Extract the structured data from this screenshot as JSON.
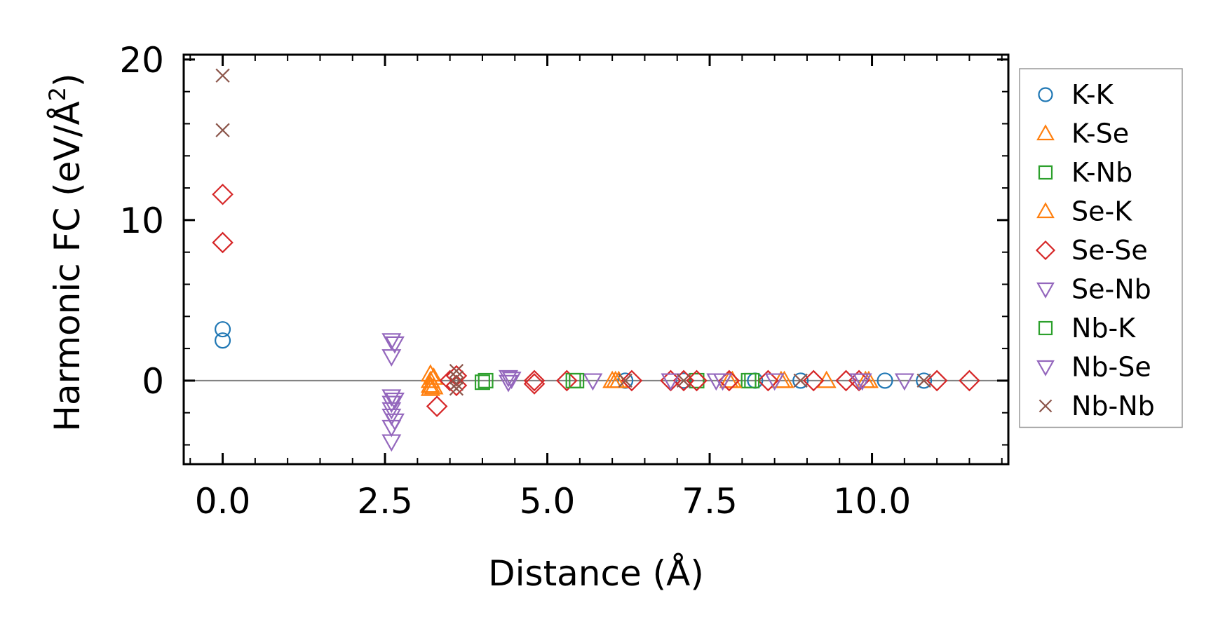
{
  "chart_data": {
    "type": "scatter",
    "title": "",
    "xlabel": "Distance (Å)",
    "ylabel_main": "Harmonic FC (eV/Å",
    "ylabel_sup": "2",
    "ylabel_close": ")",
    "xlim": [
      -0.6,
      12.1
    ],
    "ylim": [
      -5.2,
      20.3
    ],
    "xticks": [
      0.0,
      2.5,
      5.0,
      7.5,
      10.0
    ],
    "xtick_labels": [
      "0.0",
      "2.5",
      "5.0",
      "7.5",
      "10.0"
    ],
    "yticks": [
      0,
      10,
      20
    ],
    "ytick_labels": [
      "0",
      "10",
      "20"
    ],
    "grid": false,
    "zero_line": true,
    "legend_position": "outside-right",
    "series": [
      {
        "name": "K-K",
        "marker": "circle",
        "color": "#1f77b4",
        "points": [
          [
            0,
            3.2
          ],
          [
            0,
            2.5
          ],
          [
            6.2,
            0
          ],
          [
            7.1,
            0
          ],
          [
            8.2,
            0
          ],
          [
            8.9,
            0
          ],
          [
            10.2,
            0
          ],
          [
            10.8,
            0
          ]
        ]
      },
      {
        "name": "K-Se",
        "marker": "triangle-up",
        "color": "#ff7f0e",
        "points": [
          [
            3.2,
            0.4
          ],
          [
            3.2,
            0.0
          ],
          [
            3.2,
            -0.3
          ],
          [
            3.2,
            -0.5
          ],
          [
            6.0,
            0
          ],
          [
            6.1,
            0
          ],
          [
            7.8,
            0
          ],
          [
            8.6,
            0
          ],
          [
            9.3,
            0
          ],
          [
            9.9,
            0
          ]
        ]
      },
      {
        "name": "K-Nb",
        "marker": "square",
        "color": "#2ca02c",
        "points": [
          [
            4.0,
            -0.1
          ],
          [
            5.4,
            0
          ],
          [
            7.3,
            0
          ],
          [
            8.1,
            0
          ]
        ]
      },
      {
        "name": "Se-K",
        "marker": "triangle-up",
        "color": "#ff7f0e",
        "points": [
          [
            3.25,
            0.2
          ],
          [
            3.25,
            -0.4
          ],
          [
            6.05,
            0
          ],
          [
            7.85,
            0
          ],
          [
            8.65,
            0
          ],
          [
            9.95,
            0
          ]
        ]
      },
      {
        "name": "Se-Se",
        "marker": "diamond",
        "color": "#d62728",
        "points": [
          [
            0,
            11.6
          ],
          [
            0,
            8.6
          ],
          [
            3.3,
            -1.6
          ],
          [
            3.5,
            0
          ],
          [
            3.6,
            -0.3
          ],
          [
            3.6,
            0.3
          ],
          [
            4.8,
            0
          ],
          [
            4.8,
            -0.2
          ],
          [
            5.3,
            0
          ],
          [
            6.3,
            0
          ],
          [
            6.9,
            0
          ],
          [
            7.1,
            0
          ],
          [
            7.3,
            0
          ],
          [
            7.8,
            0
          ],
          [
            8.4,
            0
          ],
          [
            9.1,
            0
          ],
          [
            9.6,
            0
          ],
          [
            9.8,
            0
          ],
          [
            11.0,
            0
          ],
          [
            11.5,
            0
          ]
        ]
      },
      {
        "name": "Se-Nb",
        "marker": "triangle-down",
        "color": "#9467bd",
        "points": [
          [
            2.6,
            2.5
          ],
          [
            2.6,
            1.5
          ],
          [
            2.6,
            -1.0
          ],
          [
            2.6,
            -1.4
          ],
          [
            2.6,
            -1.8
          ],
          [
            2.6,
            -2.2
          ],
          [
            2.6,
            -2.9
          ],
          [
            2.6,
            -3.8
          ],
          [
            4.4,
            0.2
          ],
          [
            4.4,
            -0.1
          ],
          [
            5.7,
            0
          ],
          [
            6.9,
            0
          ],
          [
            7.6,
            0
          ],
          [
            8.5,
            0
          ],
          [
            9.8,
            0
          ],
          [
            10.5,
            0
          ]
        ]
      },
      {
        "name": "Nb-K",
        "marker": "square",
        "color": "#2ca02c",
        "points": [
          [
            4.05,
            0.0
          ],
          [
            5.45,
            0
          ],
          [
            8.15,
            0
          ]
        ]
      },
      {
        "name": "Nb-Se",
        "marker": "triangle-down",
        "color": "#9467bd",
        "points": [
          [
            2.65,
            2.3
          ],
          [
            2.65,
            -1.2
          ],
          [
            2.65,
            -2.5
          ],
          [
            4.45,
            0.1
          ],
          [
            7.7,
            0
          ],
          [
            9.85,
            0
          ]
        ]
      },
      {
        "name": "Nb-Nb",
        "marker": "x",
        "color": "#8c564b",
        "points": [
          [
            0,
            19.0
          ],
          [
            0,
            15.6
          ],
          [
            3.6,
            0.6
          ],
          [
            3.6,
            0.2
          ],
          [
            3.6,
            -0.2
          ],
          [
            3.6,
            -0.5
          ],
          [
            6.2,
            0
          ],
          [
            7.1,
            0
          ],
          [
            8.9,
            0
          ],
          [
            10.8,
            0
          ]
        ]
      }
    ]
  }
}
